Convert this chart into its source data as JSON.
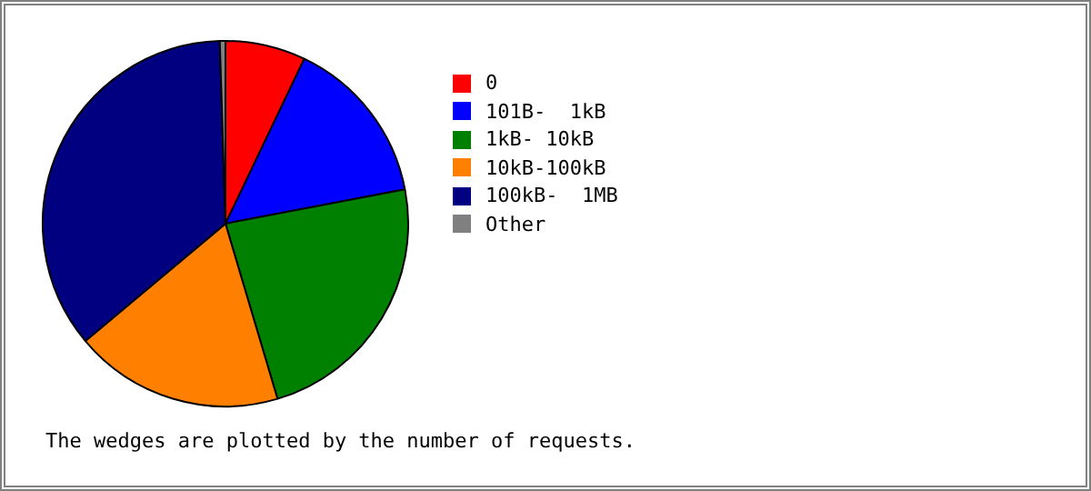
{
  "chart_data": {
    "type": "pie",
    "categories": [
      "0",
      "101B-  1kB",
      "1kB- 10kB",
      "10kB-100kB",
      "100kB-  1MB",
      "Other"
    ],
    "values": [
      7.1,
      14.9,
      23.4,
      18.5,
      35.6,
      0.5
    ],
    "colors": [
      "#ff0000",
      "#0000ff",
      "#008000",
      "#ff8000",
      "#000080",
      "#808080"
    ],
    "legend": "right",
    "annotations": [
      "The wedges are plotted by the number of requests."
    ]
  }
}
